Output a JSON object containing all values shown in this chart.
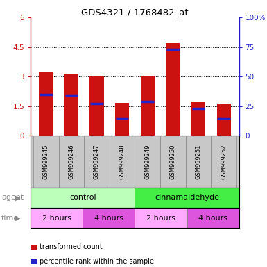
{
  "title": "GDS4321 / 1768482_at",
  "samples": [
    "GSM999245",
    "GSM999246",
    "GSM999247",
    "GSM999248",
    "GSM999249",
    "GSM999250",
    "GSM999251",
    "GSM999252"
  ],
  "bar_heights": [
    3.2,
    3.15,
    3.0,
    1.65,
    3.05,
    4.7,
    1.75,
    1.62
  ],
  "blue_markers": [
    2.1,
    2.05,
    1.62,
    0.9,
    1.72,
    4.38,
    1.4,
    0.9
  ],
  "ylim_left": [
    0,
    6
  ],
  "yticks_left": [
    0,
    1.5,
    3.0,
    4.5,
    6
  ],
  "ytick_labels_left": [
    "0",
    "1.5",
    "3",
    "4.5",
    "6"
  ],
  "yticks_right": [
    0,
    25,
    50,
    75,
    100
  ],
  "ytick_labels_right": [
    "0",
    "25",
    "50",
    "75",
    "100%"
  ],
  "bar_color": "#CC1111",
  "marker_color": "#2222CC",
  "agent_groups": [
    {
      "label": "control",
      "color": "#BBFFBB",
      "start": 0,
      "end": 4
    },
    {
      "label": "cinnamaldehyde",
      "color": "#44EE44",
      "start": 4,
      "end": 8
    }
  ],
  "time_groups": [
    {
      "label": "2 hours",
      "color": "#FFAAFF",
      "start": 0,
      "end": 2
    },
    {
      "label": "4 hours",
      "color": "#DD55DD",
      "start": 2,
      "end": 4
    },
    {
      "label": "2 hours",
      "color": "#FFAAFF",
      "start": 4,
      "end": 6
    },
    {
      "label": "4 hours",
      "color": "#DD55DD",
      "start": 6,
      "end": 8
    }
  ],
  "legend_items": [
    {
      "label": "transformed count",
      "color": "#CC1111"
    },
    {
      "label": "percentile rank within the sample",
      "color": "#2222CC"
    }
  ],
  "xlabel_agent": "agent",
  "xlabel_time": "time",
  "bg_color": "#FFFFFF",
  "bar_width": 0.55,
  "sample_bg": "#C8C8C8",
  "chart_bg": "#FFFFFF"
}
